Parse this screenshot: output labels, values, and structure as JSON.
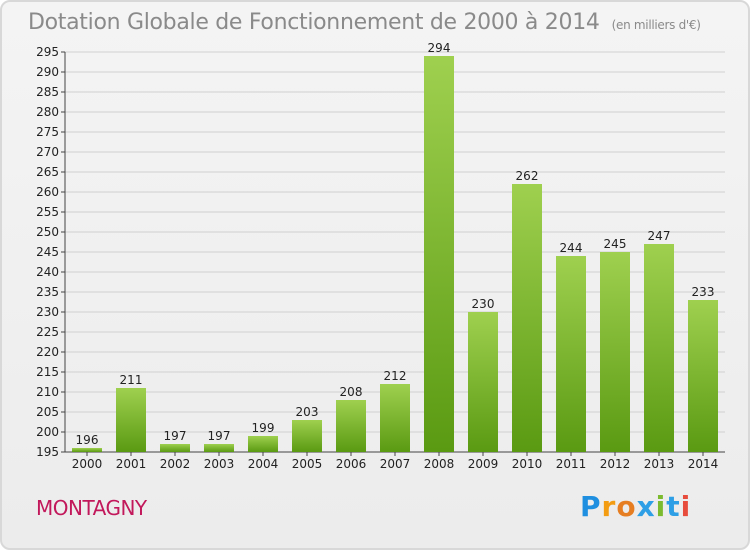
{
  "header": {
    "title": "Dotation Globale de Fonctionnement de 2000 à 2014",
    "subtitle": "(en milliers d'€)"
  },
  "footer": {
    "commune": "MONTAGNY",
    "logo": {
      "letters": [
        "P",
        "r",
        "o",
        "x",
        "i",
        "t",
        "i"
      ]
    }
  },
  "colors": {
    "bar_top": "#9fd04f",
    "bar_bottom": "#5a9a12",
    "commune": "#c2185b",
    "title": "#8a8a8a"
  },
  "chart_data": {
    "type": "bar",
    "title": "Dotation Globale de Fonctionnement de 2000 à 2014",
    "subtitle": "(en milliers d'€)",
    "xlabel": "",
    "ylabel": "",
    "categories": [
      "2000",
      "2001",
      "2002",
      "2003",
      "2004",
      "2005",
      "2006",
      "2007",
      "2008",
      "2009",
      "2010",
      "2011",
      "2012",
      "2013",
      "2014"
    ],
    "values": [
      196,
      211,
      197,
      197,
      199,
      203,
      208,
      212,
      294,
      230,
      262,
      244,
      245,
      247,
      233
    ],
    "ylim": [
      195,
      295
    ],
    "yticks": [
      195,
      200,
      205,
      210,
      215,
      220,
      225,
      230,
      235,
      240,
      245,
      250,
      255,
      260,
      265,
      270,
      275,
      280,
      285,
      290,
      295
    ],
    "grid": true,
    "legend": "none"
  }
}
